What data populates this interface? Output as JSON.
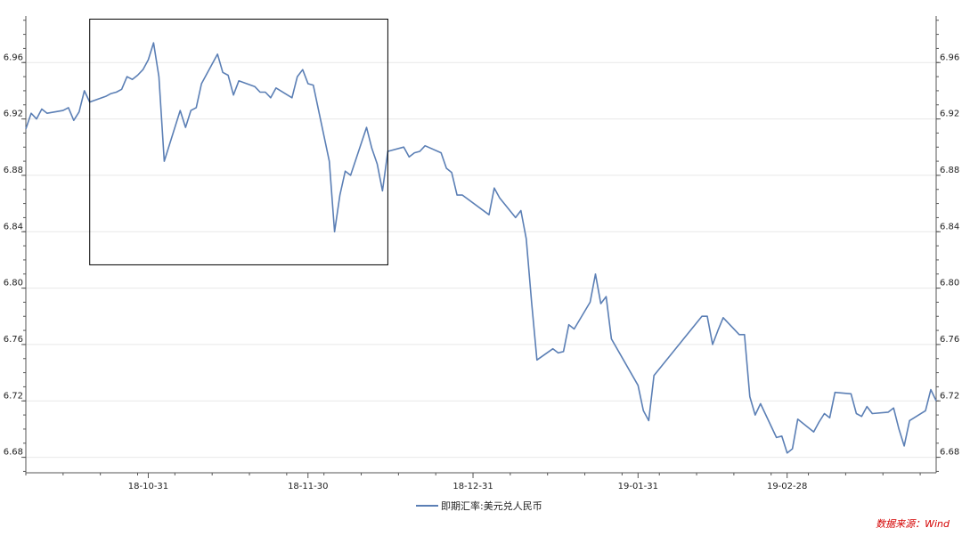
{
  "chart_data": {
    "type": "line",
    "title": "",
    "xlabel": "",
    "ylabel": "",
    "x_ticks": [
      "18-10-31",
      "18-11-30",
      "18-12-31",
      "19-01-31",
      "19-02-28"
    ],
    "y_ticks": [
      "6.68",
      "6.72",
      "6.76",
      "6.80",
      "6.84",
      "6.88",
      "6.92",
      "6.96"
    ],
    "ylim": [
      6.669,
      6.993
    ],
    "xlim": [
      "2018-10-08",
      "2019-03-28"
    ],
    "grid": "horizontal",
    "legend_position": "bottom-center",
    "series": [
      {
        "name": "即期汇率:美元兑人民币",
        "color": "#5b7fb5",
        "points": [
          [
            "2018-10-08",
            6.913
          ],
          [
            "2018-10-09",
            6.924
          ],
          [
            "2018-10-10",
            6.92
          ],
          [
            "2018-10-11",
            6.927
          ],
          [
            "2018-10-12",
            6.924
          ],
          [
            "2018-10-15",
            6.926
          ],
          [
            "2018-10-16",
            6.928
          ],
          [
            "2018-10-17",
            6.919
          ],
          [
            "2018-10-18",
            6.925
          ],
          [
            "2018-10-19",
            6.94
          ],
          [
            "2018-10-20",
            6.932
          ],
          [
            "2018-10-23",
            6.936
          ],
          [
            "2018-10-24",
            6.938
          ],
          [
            "2018-10-25",
            6.939
          ],
          [
            "2018-10-26",
            6.941
          ],
          [
            "2018-10-27",
            6.95
          ],
          [
            "2018-10-28",
            6.948
          ],
          [
            "2018-10-29",
            6.951
          ],
          [
            "2018-10-30",
            6.955
          ],
          [
            "2018-10-31",
            6.962
          ],
          [
            "2018-11-01",
            6.974
          ],
          [
            "2018-11-02",
            6.95
          ],
          [
            "2018-11-03",
            6.89
          ],
          [
            "2018-11-06",
            6.926
          ],
          [
            "2018-11-07",
            6.914
          ],
          [
            "2018-11-08",
            6.926
          ],
          [
            "2018-11-09",
            6.928
          ],
          [
            "2018-11-10",
            6.945
          ],
          [
            "2018-11-13",
            6.966
          ],
          [
            "2018-11-14",
            6.953
          ],
          [
            "2018-11-15",
            6.951
          ],
          [
            "2018-11-16",
            6.937
          ],
          [
            "2018-11-17",
            6.947
          ],
          [
            "2018-11-20",
            6.943
          ],
          [
            "2018-11-21",
            6.939
          ],
          [
            "2018-11-22",
            6.939
          ],
          [
            "2018-11-23",
            6.935
          ],
          [
            "2018-11-24",
            6.942
          ],
          [
            "2018-11-27",
            6.935
          ],
          [
            "2018-11-28",
            6.95
          ],
          [
            "2018-11-29",
            6.955
          ],
          [
            "2018-11-30",
            6.945
          ],
          [
            "2018-12-01",
            6.944
          ],
          [
            "2018-12-04",
            6.89
          ],
          [
            "2018-12-05",
            6.84
          ],
          [
            "2018-12-06",
            6.866
          ],
          [
            "2018-12-07",
            6.883
          ],
          [
            "2018-12-08",
            6.88
          ],
          [
            "2018-12-11",
            6.914
          ],
          [
            "2018-12-12",
            6.899
          ],
          [
            "2018-12-13",
            6.888
          ],
          [
            "2018-12-14",
            6.869
          ],
          [
            "2018-12-15",
            6.897
          ],
          [
            "2018-12-18",
            6.9
          ],
          [
            "2018-12-19",
            6.893
          ],
          [
            "2018-12-20",
            6.896
          ],
          [
            "2018-12-21",
            6.897
          ],
          [
            "2018-12-22",
            6.901
          ],
          [
            "2018-12-25",
            6.896
          ],
          [
            "2018-12-26",
            6.885
          ],
          [
            "2018-12-27",
            6.882
          ],
          [
            "2018-12-28",
            6.866
          ],
          [
            "2018-12-29",
            6.866
          ],
          [
            "2019-01-03",
            6.852
          ],
          [
            "2019-01-04",
            6.871
          ],
          [
            "2019-01-05",
            6.864
          ],
          [
            "2019-01-08",
            6.85
          ],
          [
            "2019-01-09",
            6.855
          ],
          [
            "2019-01-10",
            6.835
          ],
          [
            "2019-01-11",
            6.79
          ],
          [
            "2019-01-12",
            6.749
          ],
          [
            "2019-01-15",
            6.757
          ],
          [
            "2019-01-16",
            6.754
          ],
          [
            "2019-01-17",
            6.755
          ],
          [
            "2019-01-18",
            6.774
          ],
          [
            "2019-01-19",
            6.771
          ],
          [
            "2019-01-22",
            6.79
          ],
          [
            "2019-01-23",
            6.81
          ],
          [
            "2019-01-24",
            6.789
          ],
          [
            "2019-01-25",
            6.794
          ],
          [
            "2019-01-26",
            6.764
          ],
          [
            "2019-01-31",
            6.731
          ],
          [
            "2019-02-01",
            6.713
          ],
          [
            "2019-02-02",
            6.706
          ],
          [
            "2019-02-03",
            6.738
          ],
          [
            "2019-02-12",
            6.78
          ],
          [
            "2019-02-13",
            6.78
          ],
          [
            "2019-02-14",
            6.76
          ],
          [
            "2019-02-15",
            6.77
          ],
          [
            "2019-02-16",
            6.779
          ],
          [
            "2019-02-19",
            6.767
          ],
          [
            "2019-02-20",
            6.767
          ],
          [
            "2019-02-21",
            6.723
          ],
          [
            "2019-02-22",
            6.71
          ],
          [
            "2019-02-23",
            6.718
          ],
          [
            "2019-02-26",
            6.694
          ],
          [
            "2019-02-27",
            6.695
          ],
          [
            "2019-02-28",
            6.683
          ],
          [
            "2019-03-01",
            6.686
          ],
          [
            "2019-03-02",
            6.707
          ],
          [
            "2019-03-05",
            6.698
          ],
          [
            "2019-03-06",
            6.705
          ],
          [
            "2019-03-07",
            6.711
          ],
          [
            "2019-03-08",
            6.708
          ],
          [
            "2019-03-09",
            6.726
          ],
          [
            "2019-03-12",
            6.725
          ],
          [
            "2019-03-13",
            6.711
          ],
          [
            "2019-03-14",
            6.709
          ],
          [
            "2019-03-15",
            6.716
          ],
          [
            "2019-03-16",
            6.711
          ],
          [
            "2019-03-19",
            6.712
          ],
          [
            "2019-03-20",
            6.715
          ],
          [
            "2019-03-21",
            6.7
          ],
          [
            "2019-03-22",
            6.688
          ],
          [
            "2019-03-23",
            6.706
          ],
          [
            "2019-03-26",
            6.713
          ],
          [
            "2019-03-27",
            6.728
          ],
          [
            "2019-03-28",
            6.72
          ]
        ]
      }
    ],
    "annotations": [
      {
        "type": "rectangle",
        "x_range": [
          "2018-10-20",
          "2018-12-15"
        ],
        "y_range": [
          6.8165,
          6.9908
        ]
      }
    ]
  },
  "legend": {
    "label": "即期汇率:美元兑人民币"
  },
  "source": {
    "text": "数据来源：Wind"
  },
  "colors": {
    "line": "#5b7fb5",
    "axis": "#555555",
    "grid": "#e8e8e8",
    "box": "#000000",
    "source": "#d40000"
  }
}
